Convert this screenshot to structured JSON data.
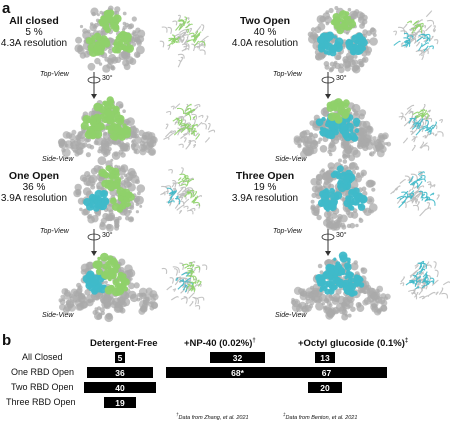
{
  "panel_a": {
    "letter": "a",
    "states": [
      {
        "title": "All closed",
        "percent": "5 %",
        "resolution": "4.3A resolution"
      },
      {
        "title": "Two Open",
        "percent": "40 %",
        "resolution": "4.0A resolution"
      },
      {
        "title": "One Open",
        "percent": "36 %",
        "resolution": "3.9A resolution"
      },
      {
        "title": "Three Open",
        "percent": "19 %",
        "resolution": "3.9A resolution"
      }
    ],
    "top_view_label": "Top-View",
    "side_view_label": "Side-View",
    "rotation_label": "30°",
    "colors": {
      "closed_rbd": "#8fd16a",
      "open_rbd": "#3fb9c9",
      "spike_gray": "#a9a9a9"
    }
  },
  "panel_b": {
    "letter": "b",
    "columns": [
      "Detergent-Free",
      "+NP-40 (0.02%)",
      "+Octyl glucoside (0.1%)"
    ],
    "column_marks": [
      "",
      "†",
      "‡"
    ],
    "rows": [
      "All Closed",
      "One RBD Open",
      "Two RBD Open",
      "Three RBD Open"
    ],
    "values": [
      [
        "5",
        "32",
        "13"
      ],
      [
        "36",
        "68*",
        "67"
      ],
      [
        "40",
        "",
        "20"
      ],
      [
        "19",
        "",
        ""
      ]
    ],
    "footnotes": [
      "Data from Zhang, et al. 2021",
      "Data from Benton, et al. 2021"
    ]
  }
}
